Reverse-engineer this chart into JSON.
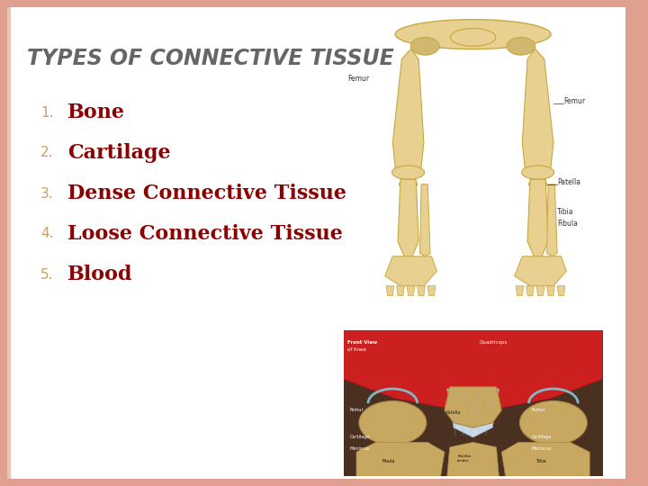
{
  "title": "TYPES OF CONNECTIVE TISSUE",
  "title_color": "#666666",
  "title_fontsize": 17,
  "items": [
    "Bone",
    "Cartilage",
    "Dense Connective Tissue",
    "Loose Connective Tissue",
    "Blood"
  ],
  "item_color": "#8b0000",
  "item_fontsize": 16,
  "number_color": "#c8a060",
  "number_fontsize": 11,
  "bg_color": "#ffffff",
  "border_color": "#e0a090",
  "border_linewidth": 6,
  "bone_color": "#e8d090",
  "bone_edge": "#c8a840",
  "white_bg": "#ffffff",
  "slide_bg": "#fff8f5"
}
